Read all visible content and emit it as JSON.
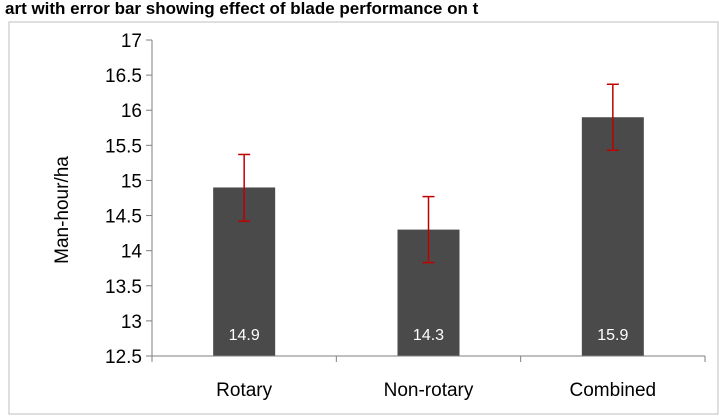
{
  "chart_data": {
    "type": "bar",
    "title": "art with error bar showing effect of blade performance on t",
    "xlabel": "",
    "ylabel": "Man-hour/ha",
    "categories": [
      "Rotary",
      "Non-rotary",
      "Combined"
    ],
    "values": [
      14.9,
      14.3,
      15.9
    ],
    "data_labels": [
      "14.9",
      "14.3",
      "15.9"
    ],
    "error_bars": [
      {
        "low": 14.42,
        "high": 15.37
      },
      {
        "low": 13.83,
        "high": 14.77
      },
      {
        "low": 15.43,
        "high": 16.37
      }
    ],
    "ylim": [
      12.5,
      17
    ],
    "yticks": [
      "12.5",
      "13",
      "13.5",
      "14",
      "14.5",
      "15",
      "15.5",
      "16",
      "16.5",
      "17"
    ],
    "grid": false,
    "legend": "none"
  },
  "colors": {
    "bar": "#4a4a4a",
    "error_bar": "#c00000",
    "axis": "#7f7f7f",
    "frame": "#bfbfbf"
  }
}
